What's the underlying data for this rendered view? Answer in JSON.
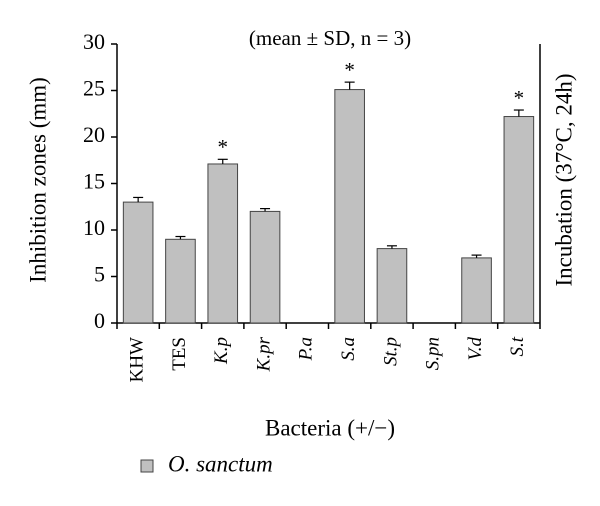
{
  "chart_data": {
    "type": "bar",
    "subtitle": "(mean ± SD, n = 3)",
    "x_label": "Bacteria (+/−)",
    "y_label": "Inhibition zones (mm)",
    "y2_label": "Incubation (37°C, 24h)",
    "categories": [
      "KHW",
      "TES",
      "K.p",
      "K.pr",
      "P.a",
      "S.a",
      "St.p",
      "S.pn",
      "V.d",
      "S.t"
    ],
    "series": [
      {
        "name": "O. sanctum",
        "color": "#c0c0c0",
        "values": [
          13,
          9,
          17.1,
          12,
          0,
          25.1,
          8,
          0,
          7,
          22.2
        ],
        "errors": [
          0.5,
          0.3,
          0.5,
          0.3,
          0,
          0.8,
          0.3,
          0,
          0.3,
          0.7
        ]
      }
    ],
    "annotations": [
      {
        "text": "*",
        "category": "K.p"
      },
      {
        "text": "*",
        "category": "S.a"
      },
      {
        "text": "*",
        "category": "S.t"
      }
    ],
    "ylim": [
      0,
      30
    ],
    "yticks": [
      0,
      5,
      10,
      15,
      20,
      25,
      30
    ],
    "grid": false,
    "legend": "bottom-left"
  }
}
